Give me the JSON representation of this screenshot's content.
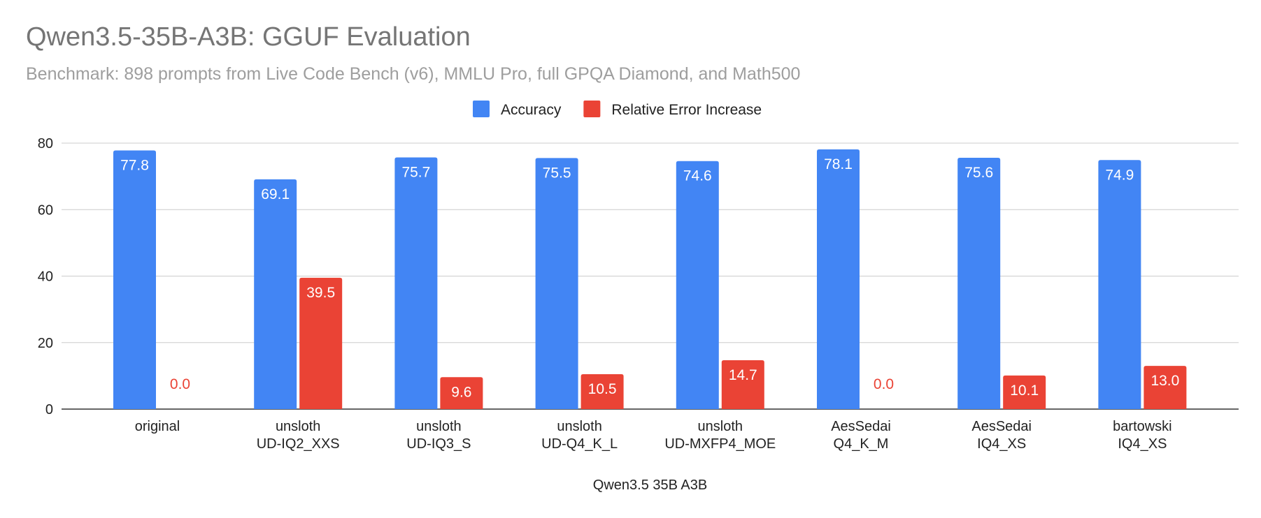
{
  "chart_data": {
    "type": "bar",
    "title": "Qwen3.5-35B-A3B: GGUF Evaluation",
    "subtitle": "Benchmark: 898 prompts from Live Code Bench (v6), MMLU Pro, full GPQA Diamond, and Math500",
    "xlabel": "Qwen3.5 35B A3B",
    "ylabel": "",
    "ylim": [
      0,
      80
    ],
    "yticks": [
      "0",
      "20",
      "40",
      "60",
      "80"
    ],
    "grid": true,
    "legend_position": "top-center",
    "categories": [
      [
        "original"
      ],
      [
        "unsloth",
        "UD-IQ2_XXS"
      ],
      [
        "unsloth",
        "UD-IQ3_S"
      ],
      [
        "unsloth",
        "UD-Q4_K_L"
      ],
      [
        "unsloth",
        "UD-MXFP4_MOE"
      ],
      [
        "AesSedai",
        "Q4_K_M"
      ],
      [
        "AesSedai",
        "IQ4_XS"
      ],
      [
        "bartowski",
        "IQ4_XS"
      ]
    ],
    "series": [
      {
        "name": "Accuracy",
        "color": "#4285f4",
        "values": [
          77.8,
          69.1,
          75.7,
          75.5,
          74.6,
          78.1,
          75.6,
          74.9
        ],
        "labels": [
          "77.8",
          "69.1",
          "75.7",
          "75.5",
          "74.6",
          "78.1",
          "75.6",
          "74.9"
        ]
      },
      {
        "name": "Relative Error Increase",
        "color": "#ea4335",
        "values": [
          0.0,
          39.5,
          9.6,
          10.5,
          14.7,
          0.0,
          10.1,
          13.0
        ],
        "labels": [
          "0.0",
          "39.5",
          "9.6",
          "10.5",
          "14.7",
          "0.0",
          "10.1",
          "13.0"
        ]
      }
    ]
  }
}
